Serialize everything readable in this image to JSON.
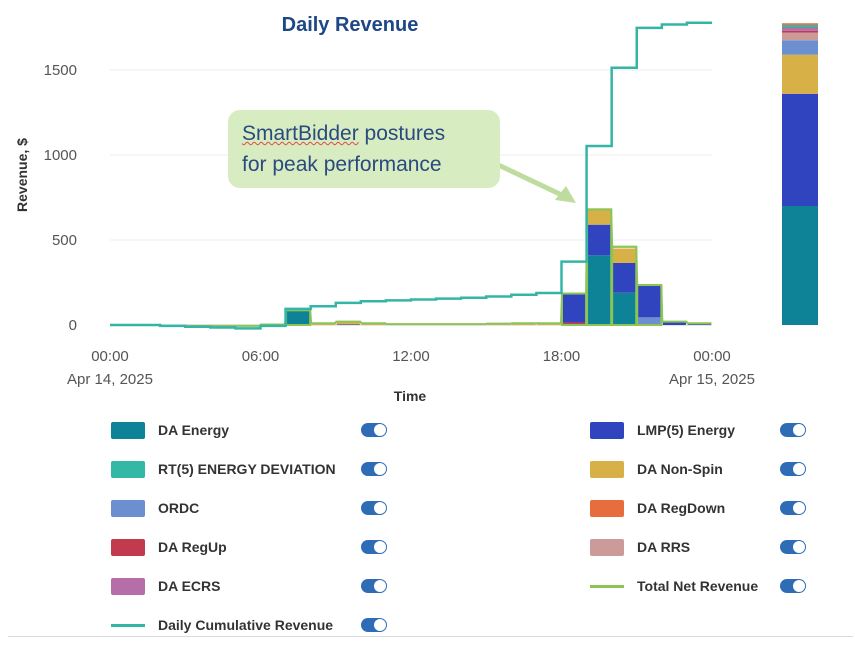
{
  "chart_data": {
    "type": "bar",
    "title": "Daily Revenue",
    "xlabel": "Time",
    "ylabel": "Revenue, $",
    "xlim": [
      "2025-04-14 00:00",
      "2025-04-15 00:00"
    ],
    "ylim": [
      0,
      1800
    ],
    "grid": true,
    "yticks": [
      0,
      500,
      1000,
      1500
    ],
    "xticks": [
      {
        "label": "00:00",
        "sublabel": "Apr 14, 2025"
      },
      {
        "label": "06:00",
        "sublabel": ""
      },
      {
        "label": "12:00",
        "sublabel": ""
      },
      {
        "label": "18:00",
        "sublabel": ""
      },
      {
        "label": "00:00",
        "sublabel": "Apr 15, 2025"
      }
    ],
    "x_hours": [
      0,
      1,
      2,
      3,
      4,
      5,
      6,
      7,
      8,
      9,
      10,
      11,
      12,
      13,
      14,
      15,
      16,
      17,
      18,
      19,
      20,
      21,
      22,
      23
    ],
    "series": [
      {
        "name": "DA Energy",
        "color": "#0e8296",
        "kind": "bar",
        "values": [
          0,
          0,
          0,
          0,
          0,
          0,
          2,
          85,
          0,
          0,
          0,
          0,
          0,
          0,
          0,
          0,
          0,
          0,
          0,
          410,
          190,
          0,
          0,
          0
        ]
      },
      {
        "name": "RT(5) ENERGY DEVIATION",
        "color": "#32b8a4",
        "kind": "bar",
        "values": [
          0,
          0,
          0,
          0,
          0,
          0,
          0,
          0,
          0,
          0,
          0,
          0,
          0,
          0,
          0,
          0,
          0,
          0,
          0,
          0,
          0,
          5,
          0,
          0
        ]
      },
      {
        "name": "ORDC",
        "color": "#6b8fcf",
        "kind": "bar",
        "values": [
          0,
          0,
          0,
          0,
          0,
          0,
          0,
          0,
          0,
          0,
          0,
          0,
          0,
          0,
          0,
          0,
          0,
          0,
          0,
          0,
          0,
          40,
          0,
          0
        ]
      },
      {
        "name": "DA RegUp",
        "color": "#c23a4e",
        "kind": "bar",
        "values": [
          0,
          0,
          0,
          0,
          0,
          0,
          0,
          0,
          0,
          0,
          0,
          0,
          0,
          0,
          0,
          0,
          0,
          0,
          15,
          0,
          0,
          0,
          0,
          0
        ]
      },
      {
        "name": "DA ECRS",
        "color": "#b66ea8",
        "kind": "bar",
        "values": [
          0,
          0,
          0,
          0,
          0,
          0,
          0,
          0,
          0,
          0,
          0,
          0,
          0,
          0,
          0,
          0,
          0,
          0,
          0,
          0,
          0,
          0,
          0,
          0
        ]
      },
      {
        "name": "LMP(5) Energy",
        "color": "#3044c0",
        "kind": "bar",
        "values": [
          0,
          0,
          0,
          0,
          0,
          0,
          0,
          0,
          0,
          3,
          0,
          0,
          0,
          0,
          0,
          0,
          0,
          0,
          165,
          180,
          175,
          185,
          15,
          5
        ]
      },
      {
        "name": "DA Non-Spin",
        "color": "#d8b048",
        "kind": "bar",
        "values": [
          0,
          0,
          0,
          0,
          0,
          0,
          0,
          0,
          8,
          15,
          8,
          5,
          5,
          5,
          5,
          8,
          10,
          10,
          5,
          90,
          85,
          5,
          3,
          3
        ]
      },
      {
        "name": "DA RegDown",
        "color": "#e66e3e",
        "kind": "bar",
        "values": [
          0,
          0,
          0,
          0,
          0,
          0,
          0,
          0,
          0,
          0,
          0,
          0,
          0,
          0,
          0,
          0,
          0,
          0,
          0,
          0,
          0,
          0,
          0,
          0
        ]
      },
      {
        "name": "DA RRS",
        "color": "#cc9a98",
        "kind": "bar",
        "values": [
          0,
          0,
          0,
          0,
          0,
          0,
          0,
          0,
          0,
          0,
          0,
          0,
          0,
          0,
          0,
          0,
          0,
          0,
          0,
          0,
          0,
          0,
          0,
          0
        ]
      },
      {
        "name": "Total Net Revenue",
        "color": "#8cc456",
        "kind": "outline",
        "values": [
          0,
          0,
          -5,
          -5,
          -5,
          -5,
          3,
          87,
          10,
          20,
          10,
          5,
          5,
          5,
          5,
          8,
          10,
          10,
          185,
          680,
          460,
          235,
          20,
          10
        ]
      },
      {
        "name": "Daily Cumulative Revenue",
        "color": "#35b5a6",
        "kind": "step",
        "values": [
          0,
          0,
          -5,
          -10,
          -15,
          -20,
          -5,
          95,
          110,
          130,
          140,
          145,
          150,
          155,
          160,
          168,
          178,
          188,
          373,
          1053,
          1513,
          1748,
          1768,
          1778
        ]
      }
    ],
    "daily_totals": {
      "values": [
        700,
        660,
        230,
        85,
        45,
        10,
        20,
        15,
        10
      ],
      "names": [
        "DA Energy",
        "LMP(5) Energy",
        "DA Non-Spin",
        "ORDC",
        "DA RRS",
        "DA RegUp",
        "DA ECRS",
        "RT(5) ENERGY DEVIATION",
        "DA RegDown"
      ]
    },
    "annotation": {
      "line1_brand": "SmartBidder",
      "line1_rest": " postures",
      "line2": "for peak performance"
    }
  },
  "legend": {
    "left": [
      {
        "label": "DA Energy",
        "color": "#0e8296",
        "swatch": "box"
      },
      {
        "label": "RT(5) ENERGY DEVIATION",
        "color": "#32b8a4",
        "swatch": "box"
      },
      {
        "label": "ORDC",
        "color": "#6b8fcf",
        "swatch": "box"
      },
      {
        "label": "DA RegUp",
        "color": "#c23a4e",
        "swatch": "box"
      },
      {
        "label": "DA ECRS",
        "color": "#b66ea8",
        "swatch": "box"
      },
      {
        "label": "Daily Cumulative Revenue",
        "color": "#35b5a6",
        "swatch": "line"
      }
    ],
    "right": [
      {
        "label": "LMP(5) Energy",
        "color": "#3044c0",
        "swatch": "box"
      },
      {
        "label": "DA Non-Spin",
        "color": "#d8b048",
        "swatch": "box"
      },
      {
        "label": "DA RegDown",
        "color": "#e66e3e",
        "swatch": "box"
      },
      {
        "label": "DA RRS",
        "color": "#cc9a98",
        "swatch": "box"
      },
      {
        "label": "Total Net Revenue",
        "color": "#8cc456",
        "swatch": "line"
      }
    ],
    "toggle_color": "#2f6cb6"
  }
}
